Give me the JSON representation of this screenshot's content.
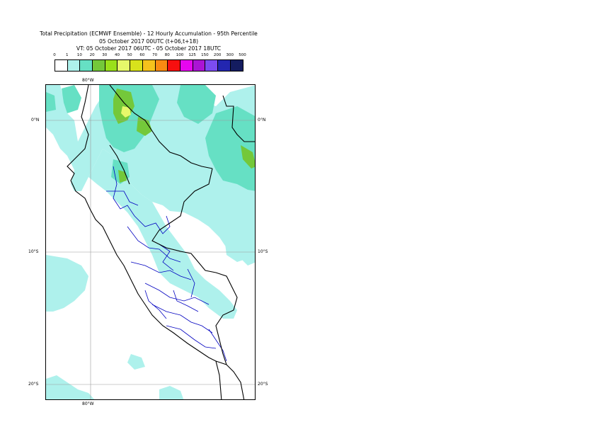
{
  "title": {
    "line1": "Total Precipitation (ECMWF Ensemble) - 12 Hourly Accumulation - 95th Percentile",
    "line2": "05 October 2017 00UTC (t+06,t+18)",
    "line3": "VT: 05 October 2017 06UTC - 05 October 2017 18UTC"
  },
  "colorbar": {
    "ticks": [
      "0",
      "1",
      "10",
      "20",
      "30",
      "40",
      "50",
      "60",
      "70",
      "80",
      "100",
      "125",
      "150",
      "200",
      "300",
      "500"
    ],
    "colors": [
      "#ffffff",
      "#aef1ec",
      "#66e0c4",
      "#74c83a",
      "#9ae01a",
      "#e6f86a",
      "#d8e21c",
      "#f6c21c",
      "#f98a12",
      "#f70f0f",
      "#e706f0",
      "#ab14d4",
      "#7c4cf0",
      "#2326b0",
      "#141c60"
    ]
  },
  "axes": {
    "lon_top": "80°W",
    "lon_bottom": "80°W",
    "lat_left": [
      "0°N",
      "10°S",
      "20°S"
    ],
    "lat_right": [
      "0°N",
      "10°S",
      "20°S"
    ]
  },
  "map": {
    "colors": {
      "light": "#aef1ec",
      "medium": "#66e0c4",
      "green": "#74c83a",
      "yellow": "#e6f86a",
      "country_border": "#000000",
      "region_border": "#0000c0",
      "grid": "#9a9a9a"
    }
  }
}
